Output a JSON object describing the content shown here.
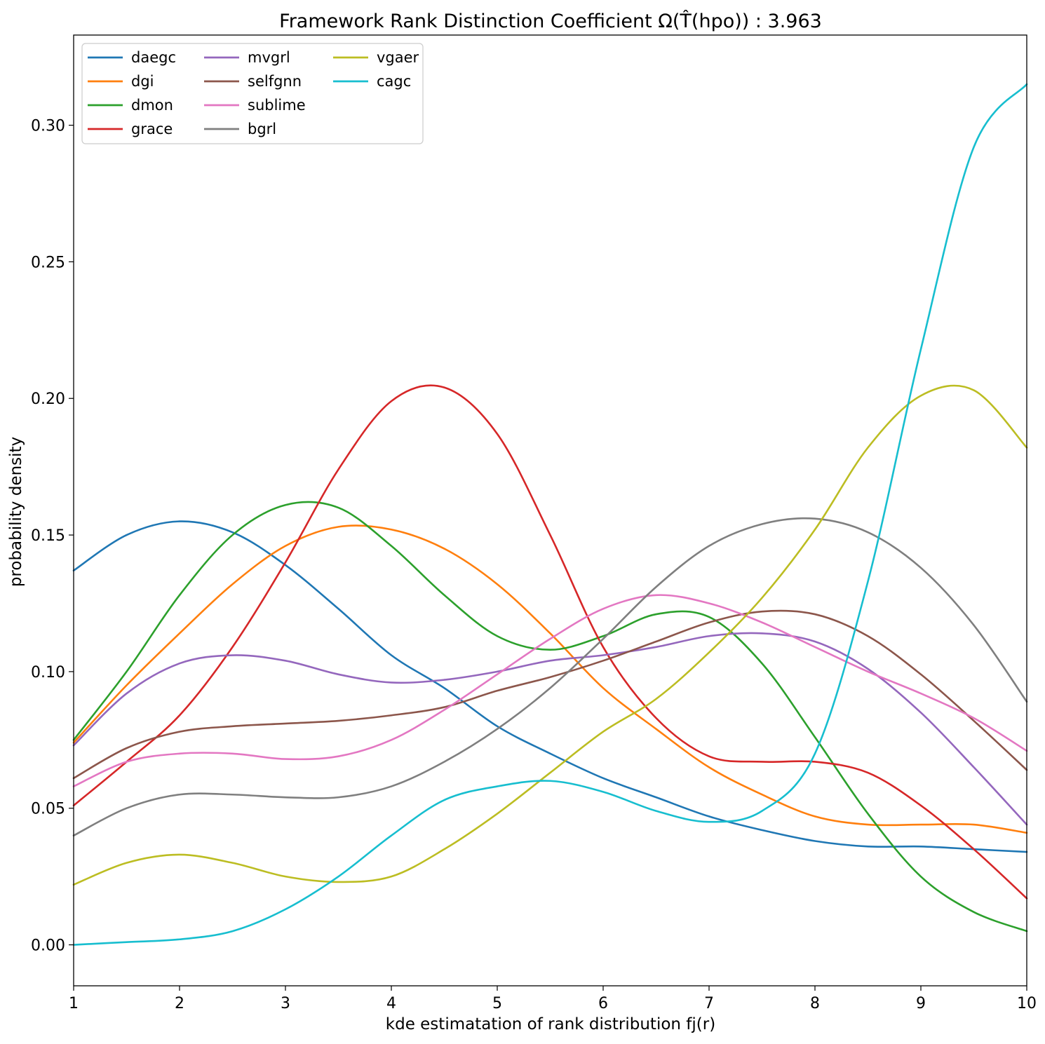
{
  "chart_data": {
    "type": "line",
    "title": "Framework Rank Distinction Coefficient Ω(T̂(hpo)) : 3.963",
    "xlabel": "kde estimatation of rank distribution fj(r)",
    "ylabel": "probability density",
    "xlim": [
      1,
      10
    ],
    "ylim": [
      -0.015,
      0.333
    ],
    "x_ticks": [
      "1",
      "2",
      "3",
      "4",
      "5",
      "6",
      "7",
      "8",
      "9",
      "10"
    ],
    "y_ticks": [
      "0.00",
      "0.05",
      "0.10",
      "0.15",
      "0.20",
      "0.25",
      "0.30"
    ],
    "legend_position": "upper-left",
    "grid": false,
    "x": [
      1,
      1.5,
      2,
      2.5,
      3,
      3.5,
      4,
      4.5,
      5,
      5.5,
      6,
      6.5,
      7,
      7.5,
      8,
      8.5,
      9,
      9.5,
      10
    ],
    "series": [
      {
        "name": "daegc",
        "color": "#1f77b4",
        "values": [
          0.137,
          0.15,
          0.155,
          0.151,
          0.139,
          0.123,
          0.106,
          0.094,
          0.08,
          0.07,
          0.061,
          0.054,
          0.047,
          0.042,
          0.038,
          0.036,
          0.036,
          0.035,
          0.034
        ]
      },
      {
        "name": "dgi",
        "color": "#ff7f0e",
        "values": [
          0.074,
          0.095,
          0.114,
          0.132,
          0.146,
          0.153,
          0.152,
          0.145,
          0.132,
          0.114,
          0.094,
          0.079,
          0.065,
          0.055,
          0.047,
          0.044,
          0.044,
          0.044,
          0.041
        ]
      },
      {
        "name": "dmon",
        "color": "#2ca02c",
        "values": [
          0.075,
          0.1,
          0.128,
          0.15,
          0.161,
          0.16,
          0.146,
          0.128,
          0.113,
          0.108,
          0.113,
          0.121,
          0.12,
          0.103,
          0.076,
          0.048,
          0.025,
          0.012,
          0.005
        ]
      },
      {
        "name": "grace",
        "color": "#d62728",
        "values": [
          0.051,
          0.067,
          0.084,
          0.109,
          0.14,
          0.174,
          0.199,
          0.204,
          0.187,
          0.15,
          0.109,
          0.083,
          0.069,
          0.067,
          0.067,
          0.063,
          0.051,
          0.035,
          0.017
        ]
      },
      {
        "name": "mvgrl",
        "color": "#9467bd",
        "values": [
          0.073,
          0.092,
          0.103,
          0.106,
          0.104,
          0.099,
          0.096,
          0.097,
          0.1,
          0.104,
          0.106,
          0.109,
          0.113,
          0.114,
          0.111,
          0.101,
          0.085,
          0.065,
          0.044
        ]
      },
      {
        "name": "selfgnn",
        "color": "#8c564b",
        "values": [
          0.061,
          0.072,
          0.078,
          0.08,
          0.081,
          0.082,
          0.084,
          0.087,
          0.093,
          0.098,
          0.104,
          0.111,
          0.118,
          0.122,
          0.121,
          0.113,
          0.099,
          0.082,
          0.064
        ]
      },
      {
        "name": "sublime",
        "color": "#e377c2",
        "values": [
          0.058,
          0.067,
          0.07,
          0.07,
          0.068,
          0.069,
          0.075,
          0.086,
          0.099,
          0.112,
          0.123,
          0.128,
          0.125,
          0.118,
          0.109,
          0.1,
          0.092,
          0.083,
          0.071
        ]
      },
      {
        "name": "bgrl",
        "color": "#7f7f7f",
        "values": [
          0.04,
          0.05,
          0.055,
          0.055,
          0.054,
          0.054,
          0.058,
          0.067,
          0.079,
          0.094,
          0.112,
          0.131,
          0.146,
          0.154,
          0.156,
          0.151,
          0.138,
          0.117,
          0.089
        ]
      },
      {
        "name": "vgaer",
        "color": "#bcbd22",
        "values": [
          0.022,
          0.03,
          0.033,
          0.03,
          0.025,
          0.023,
          0.025,
          0.035,
          0.048,
          0.063,
          0.078,
          0.09,
          0.107,
          0.127,
          0.152,
          0.182,
          0.201,
          0.203,
          0.182
        ]
      },
      {
        "name": "cagc",
        "color": "#17becf",
        "values": [
          0.0,
          0.001,
          0.002,
          0.005,
          0.013,
          0.025,
          0.04,
          0.053,
          0.058,
          0.06,
          0.056,
          0.049,
          0.045,
          0.049,
          0.07,
          0.133,
          0.218,
          0.292,
          0.315
        ]
      }
    ]
  }
}
